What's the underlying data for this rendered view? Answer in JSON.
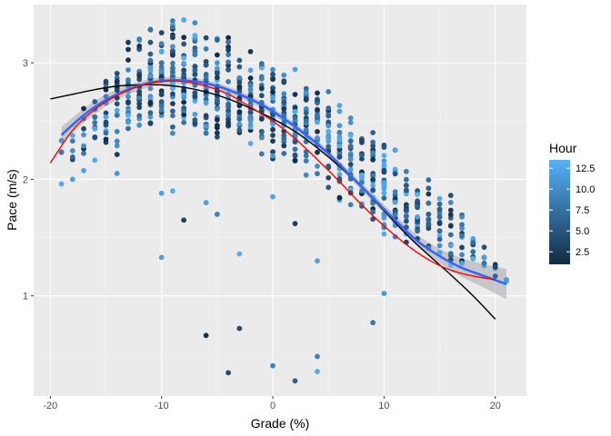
{
  "chart_data": {
    "type": "scatter",
    "xlabel": "Grade (%)",
    "ylabel": "Pace (m/s)",
    "xlim": [
      -21.5,
      22.8
    ],
    "ylim": [
      0.14,
      3.5
    ],
    "xticks": [
      -20,
      -10,
      0,
      10,
      20
    ],
    "yticks": [
      1,
      2,
      3
    ],
    "grid": true,
    "background": "#EBEBEB",
    "legend": {
      "title": "Hour",
      "placement": "right",
      "ticks": [
        2.5,
        5.0,
        7.5,
        10.0,
        12.5
      ],
      "range": [
        1,
        13.5
      ],
      "colors": [
        "#132B43",
        "#56B1F7"
      ]
    },
    "point_cloud": {
      "seed": 20240601,
      "grades": [
        -19,
        -18,
        -17,
        -16,
        -15,
        -14,
        -13,
        -12,
        -11,
        -10,
        -9,
        -8,
        -7,
        -6,
        -5,
        -4,
        -3,
        -2,
        -1,
        0,
        1,
        2,
        3,
        4,
        5,
        6,
        7,
        8,
        9,
        10,
        11,
        12,
        13,
        14,
        15,
        16,
        17,
        18,
        19,
        20,
        21
      ],
      "counts": [
        3,
        5,
        8,
        10,
        14,
        16,
        22,
        26,
        30,
        32,
        32,
        32,
        30,
        28,
        28,
        28,
        28,
        28,
        26,
        26,
        26,
        26,
        26,
        24,
        24,
        24,
        24,
        24,
        24,
        24,
        22,
        22,
        20,
        18,
        16,
        14,
        12,
        10,
        6,
        4,
        2
      ],
      "lows": [
        1.95,
        1.9,
        2.0,
        2.1,
        2.2,
        2.2,
        2.3,
        2.2,
        2.3,
        2.35,
        2.35,
        2.3,
        2.3,
        2.25,
        2.2,
        2.25,
        2.2,
        2.2,
        2.2,
        2.15,
        2.1,
        2.05,
        2.0,
        1.95,
        1.85,
        1.75,
        1.7,
        1.6,
        1.55,
        1.45,
        1.4,
        1.35,
        1.3,
        1.3,
        1.25,
        1.2,
        1.2,
        1.2,
        1.15,
        1.12,
        1.12
      ],
      "highs": [
        2.45,
        2.6,
        2.7,
        2.85,
        3.0,
        3.05,
        3.2,
        3.35,
        3.35,
        3.4,
        3.45,
        3.45,
        3.4,
        3.35,
        3.3,
        3.3,
        3.2,
        3.15,
        3.15,
        3.1,
        3.05,
        3.0,
        2.95,
        2.9,
        2.9,
        2.75,
        2.6,
        2.55,
        2.5,
        2.4,
        2.3,
        2.2,
        2.1,
        2.05,
        2.0,
        1.95,
        1.85,
        1.7,
        1.5,
        1.3,
        1.15
      ]
    },
    "outliers": [
      {
        "x": -19,
        "y": 1.96,
        "hour": 13
      },
      {
        "x": -18,
        "y": 2.0,
        "hour": 12
      },
      {
        "x": -14,
        "y": 2.05,
        "hour": 11
      },
      {
        "x": -10,
        "y": 1.33,
        "hour": 12
      },
      {
        "x": -10,
        "y": 1.88,
        "hour": 12
      },
      {
        "x": -9,
        "y": 1.9,
        "hour": 13
      },
      {
        "x": -8,
        "y": 1.65,
        "hour": 3
      },
      {
        "x": -6,
        "y": 1.8,
        "hour": 12
      },
      {
        "x": -6,
        "y": 0.66,
        "hour": 2
      },
      {
        "x": -5,
        "y": 1.7,
        "hour": 9
      },
      {
        "x": -4,
        "y": 0.34,
        "hour": 4
      },
      {
        "x": -3,
        "y": 1.36,
        "hour": 13
      },
      {
        "x": -3,
        "y": 0.72,
        "hour": 4
      },
      {
        "x": 0,
        "y": 0.4,
        "hour": 9
      },
      {
        "x": 0,
        "y": 1.85,
        "hour": 12
      },
      {
        "x": 2,
        "y": 0.27,
        "hour": 6
      },
      {
        "x": 2,
        "y": 1.62,
        "hour": 3
      },
      {
        "x": 4,
        "y": 0.48,
        "hour": 9
      },
      {
        "x": 4,
        "y": 0.35,
        "hour": 13
      },
      {
        "x": 4,
        "y": 1.3,
        "hour": 12
      },
      {
        "x": 9,
        "y": 0.77,
        "hour": 8
      },
      {
        "x": 10,
        "y": 1.02,
        "hour": 11
      }
    ],
    "series": [
      {
        "style": "loess-blue",
        "color": "#3366FF",
        "x": [
          -19,
          -17,
          -15,
          -13,
          -11,
          -9,
          -7,
          -5,
          -3,
          -1,
          1,
          3,
          5,
          7,
          9,
          11,
          13,
          15,
          17,
          19,
          21
        ],
        "y": [
          2.38,
          2.55,
          2.68,
          2.77,
          2.83,
          2.85,
          2.84,
          2.8,
          2.73,
          2.64,
          2.52,
          2.38,
          2.22,
          2.03,
          1.84,
          1.65,
          1.47,
          1.34,
          1.24,
          1.17,
          1.1
        ],
        "ci": [
          0.07,
          0.06,
          0.05,
          0.04,
          0.035,
          0.03,
          0.03,
          0.03,
          0.03,
          0.03,
          0.03,
          0.03,
          0.03,
          0.03,
          0.035,
          0.04,
          0.05,
          0.06,
          0.08,
          0.1,
          0.13
        ]
      },
      {
        "style": "red",
        "color": "#FF0000",
        "x": [
          -20,
          -18,
          -16,
          -14,
          -12,
          -10,
          -8,
          -6,
          -4,
          -2,
          0,
          2,
          4,
          6,
          8,
          10,
          12,
          14,
          16,
          18,
          20
        ],
        "y": [
          2.14,
          2.42,
          2.6,
          2.72,
          2.8,
          2.84,
          2.84,
          2.8,
          2.73,
          2.62,
          2.5,
          2.35,
          2.17,
          1.98,
          1.78,
          1.6,
          1.44,
          1.31,
          1.22,
          1.17,
          1.14
        ]
      },
      {
        "style": "black",
        "color": "#000000",
        "x": [
          -20,
          -18,
          -16,
          -14,
          -12,
          -10,
          -8,
          -6,
          -4,
          -2,
          0,
          2,
          4,
          6,
          8,
          10,
          12,
          14,
          16,
          18,
          20
        ],
        "y": [
          2.69,
          2.73,
          2.77,
          2.8,
          2.81,
          2.81,
          2.79,
          2.75,
          2.69,
          2.61,
          2.52,
          2.41,
          2.27,
          2.11,
          1.93,
          1.73,
          1.53,
          1.35,
          1.18,
          1.0,
          0.8
        ]
      }
    ]
  }
}
